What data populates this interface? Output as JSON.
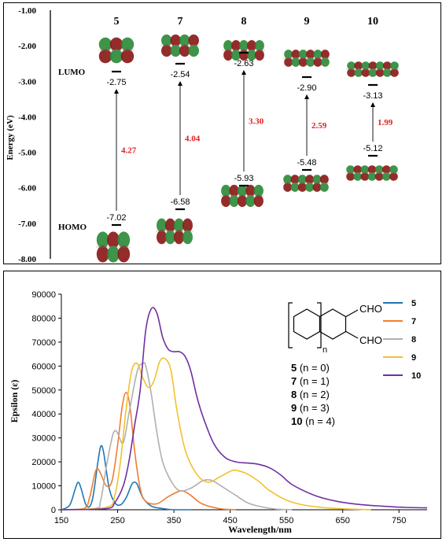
{
  "chart_data": [
    {
      "type": "diagram",
      "ylabel": "Energy (eV)",
      "ylim": [
        -8.0,
        -1.0
      ],
      "yticks": [
        "-1.00",
        "-2.00",
        "-3.00",
        "-4.00",
        "-5.00",
        "-6.00",
        "-7.00",
        "-8.00"
      ],
      "lumo_label": "LUMO",
      "homo_label": "HOMO",
      "compounds": [
        {
          "id": "5",
          "lumo": -2.75,
          "homo": -7.02,
          "lumo_label": "-2.75",
          "homo_label": "-7.02",
          "gap": "4.27"
        },
        {
          "id": "7",
          "lumo": -2.54,
          "homo": -6.58,
          "lumo_label": "-2.54",
          "homo_label": "-6.58",
          "gap": "4.04"
        },
        {
          "id": "8",
          "lumo": -2.63,
          "homo": -5.93,
          "lumo_label": "-2.63",
          "homo_label": "-5.93",
          "gap": "3.30"
        },
        {
          "id": "9",
          "lumo": -2.9,
          "homo": -5.48,
          "lumo_label": "-2.90",
          "homo_label": "-5.48",
          "gap": "2.59"
        },
        {
          "id": "10",
          "lumo": -3.13,
          "homo": -5.12,
          "lumo_label": "-3.13",
          "homo_label": "-5.12",
          "gap": "1.99"
        }
      ],
      "colors": {
        "gap": "#e02020",
        "orbital_green": "#2e8b3a",
        "orbital_red": "#8b1a1a"
      }
    },
    {
      "type": "line",
      "xlabel": "Wavelength/nm",
      "ylabel": "Epsilon (ε)",
      "xlim": [
        150,
        800
      ],
      "ylim": [
        0,
        90000
      ],
      "xticks": [
        "150",
        "250",
        "350",
        "450",
        "550",
        "650",
        "750"
      ],
      "yticks": [
        "0",
        "10000",
        "20000",
        "30000",
        "40000",
        "50000",
        "60000",
        "70000",
        "80000",
        "90000"
      ],
      "legend_position": "right",
      "series": [
        {
          "name": "5",
          "color": "#1f77b4",
          "x": [
            150,
            165,
            175,
            180,
            185,
            195,
            205,
            215,
            220,
            225,
            235,
            245,
            255,
            265,
            275,
            280,
            285,
            295,
            310,
            330,
            350,
            380
          ],
          "y": [
            0,
            2000,
            9000,
            11500,
            9000,
            1500,
            4000,
            20000,
            26500,
            24000,
            9000,
            3000,
            2000,
            5000,
            10500,
            11500,
            10500,
            5000,
            1500,
            500,
            0,
            0
          ]
        },
        {
          "name": "7",
          "color": "#f07d32",
          "x": [
            150,
            190,
            200,
            210,
            215,
            220,
            230,
            240,
            250,
            258,
            265,
            272,
            280,
            290,
            300,
            320,
            340,
            360,
            370,
            380,
            400,
            430,
            460
          ],
          "y": [
            0,
            500,
            5000,
            15500,
            17000,
            15000,
            10000,
            12000,
            27000,
            43000,
            49000,
            43000,
            25000,
            9000,
            3500,
            2500,
            5500,
            7800,
            7500,
            6000,
            2500,
            500,
            0
          ]
        },
        {
          "name": "8",
          "color": "#b0b0b0",
          "x": [
            150,
            210,
            220,
            230,
            240,
            245,
            250,
            260,
            270,
            285,
            295,
            300,
            310,
            320,
            330,
            345,
            360,
            380,
            400,
            410,
            420,
            440,
            460,
            480,
            500,
            530,
            560
          ],
          "y": [
            0,
            500,
            4000,
            18000,
            30000,
            33000,
            32000,
            28000,
            40000,
            58000,
            61000,
            60000,
            48000,
            32000,
            20000,
            12000,
            8000,
            9000,
            12000,
            12500,
            12000,
            9000,
            6000,
            3000,
            1500,
            300,
            0
          ]
        },
        {
          "name": "9",
          "color": "#f2c12e",
          "x": [
            150,
            230,
            245,
            255,
            265,
            275,
            285,
            295,
            305,
            315,
            325,
            335,
            345,
            355,
            370,
            390,
            410,
            430,
            450,
            460,
            480,
            500,
            520,
            550,
            580,
            620,
            660,
            700
          ],
          "y": [
            0,
            1000,
            6000,
            20000,
            42000,
            58000,
            61000,
            55000,
            51000,
            54000,
            62000,
            63000,
            58000,
            42000,
            25000,
            15000,
            11500,
            13500,
            16000,
            16500,
            15000,
            12000,
            8000,
            4000,
            2000,
            800,
            300,
            0
          ]
        },
        {
          "name": "10",
          "color": "#7030a0",
          "x": [
            150,
            230,
            245,
            260,
            270,
            280,
            290,
            300,
            310,
            320,
            330,
            340,
            350,
            360,
            370,
            380,
            390,
            400,
            420,
            440,
            460,
            480,
            500,
            520,
            540,
            560,
            600,
            640,
            680,
            720,
            760,
            800
          ],
          "y": [
            0,
            500,
            3000,
            10000,
            20000,
            35000,
            50000,
            75000,
            84000,
            82000,
            72000,
            67000,
            66000,
            66000,
            64000,
            58000,
            48000,
            40000,
            28000,
            22000,
            20000,
            19500,
            19000,
            17500,
            14500,
            10500,
            6000,
            3500,
            2200,
            1500,
            1000,
            800
          ]
        }
      ],
      "structure_labels": {
        "cho_top": "CHO",
        "cho_bottom": "CHO",
        "n": "n"
      },
      "legend_entries": [
        {
          "bold": "5",
          "rest": " (n = 0)"
        },
        {
          "bold": "7",
          "rest": " (n = 1)"
        },
        {
          "bold": "8",
          "rest": " (n = 2)"
        },
        {
          "bold": "9",
          "rest": " (n = 3)"
        },
        {
          "bold": "10",
          "rest": " (n = 4)"
        }
      ]
    }
  ]
}
